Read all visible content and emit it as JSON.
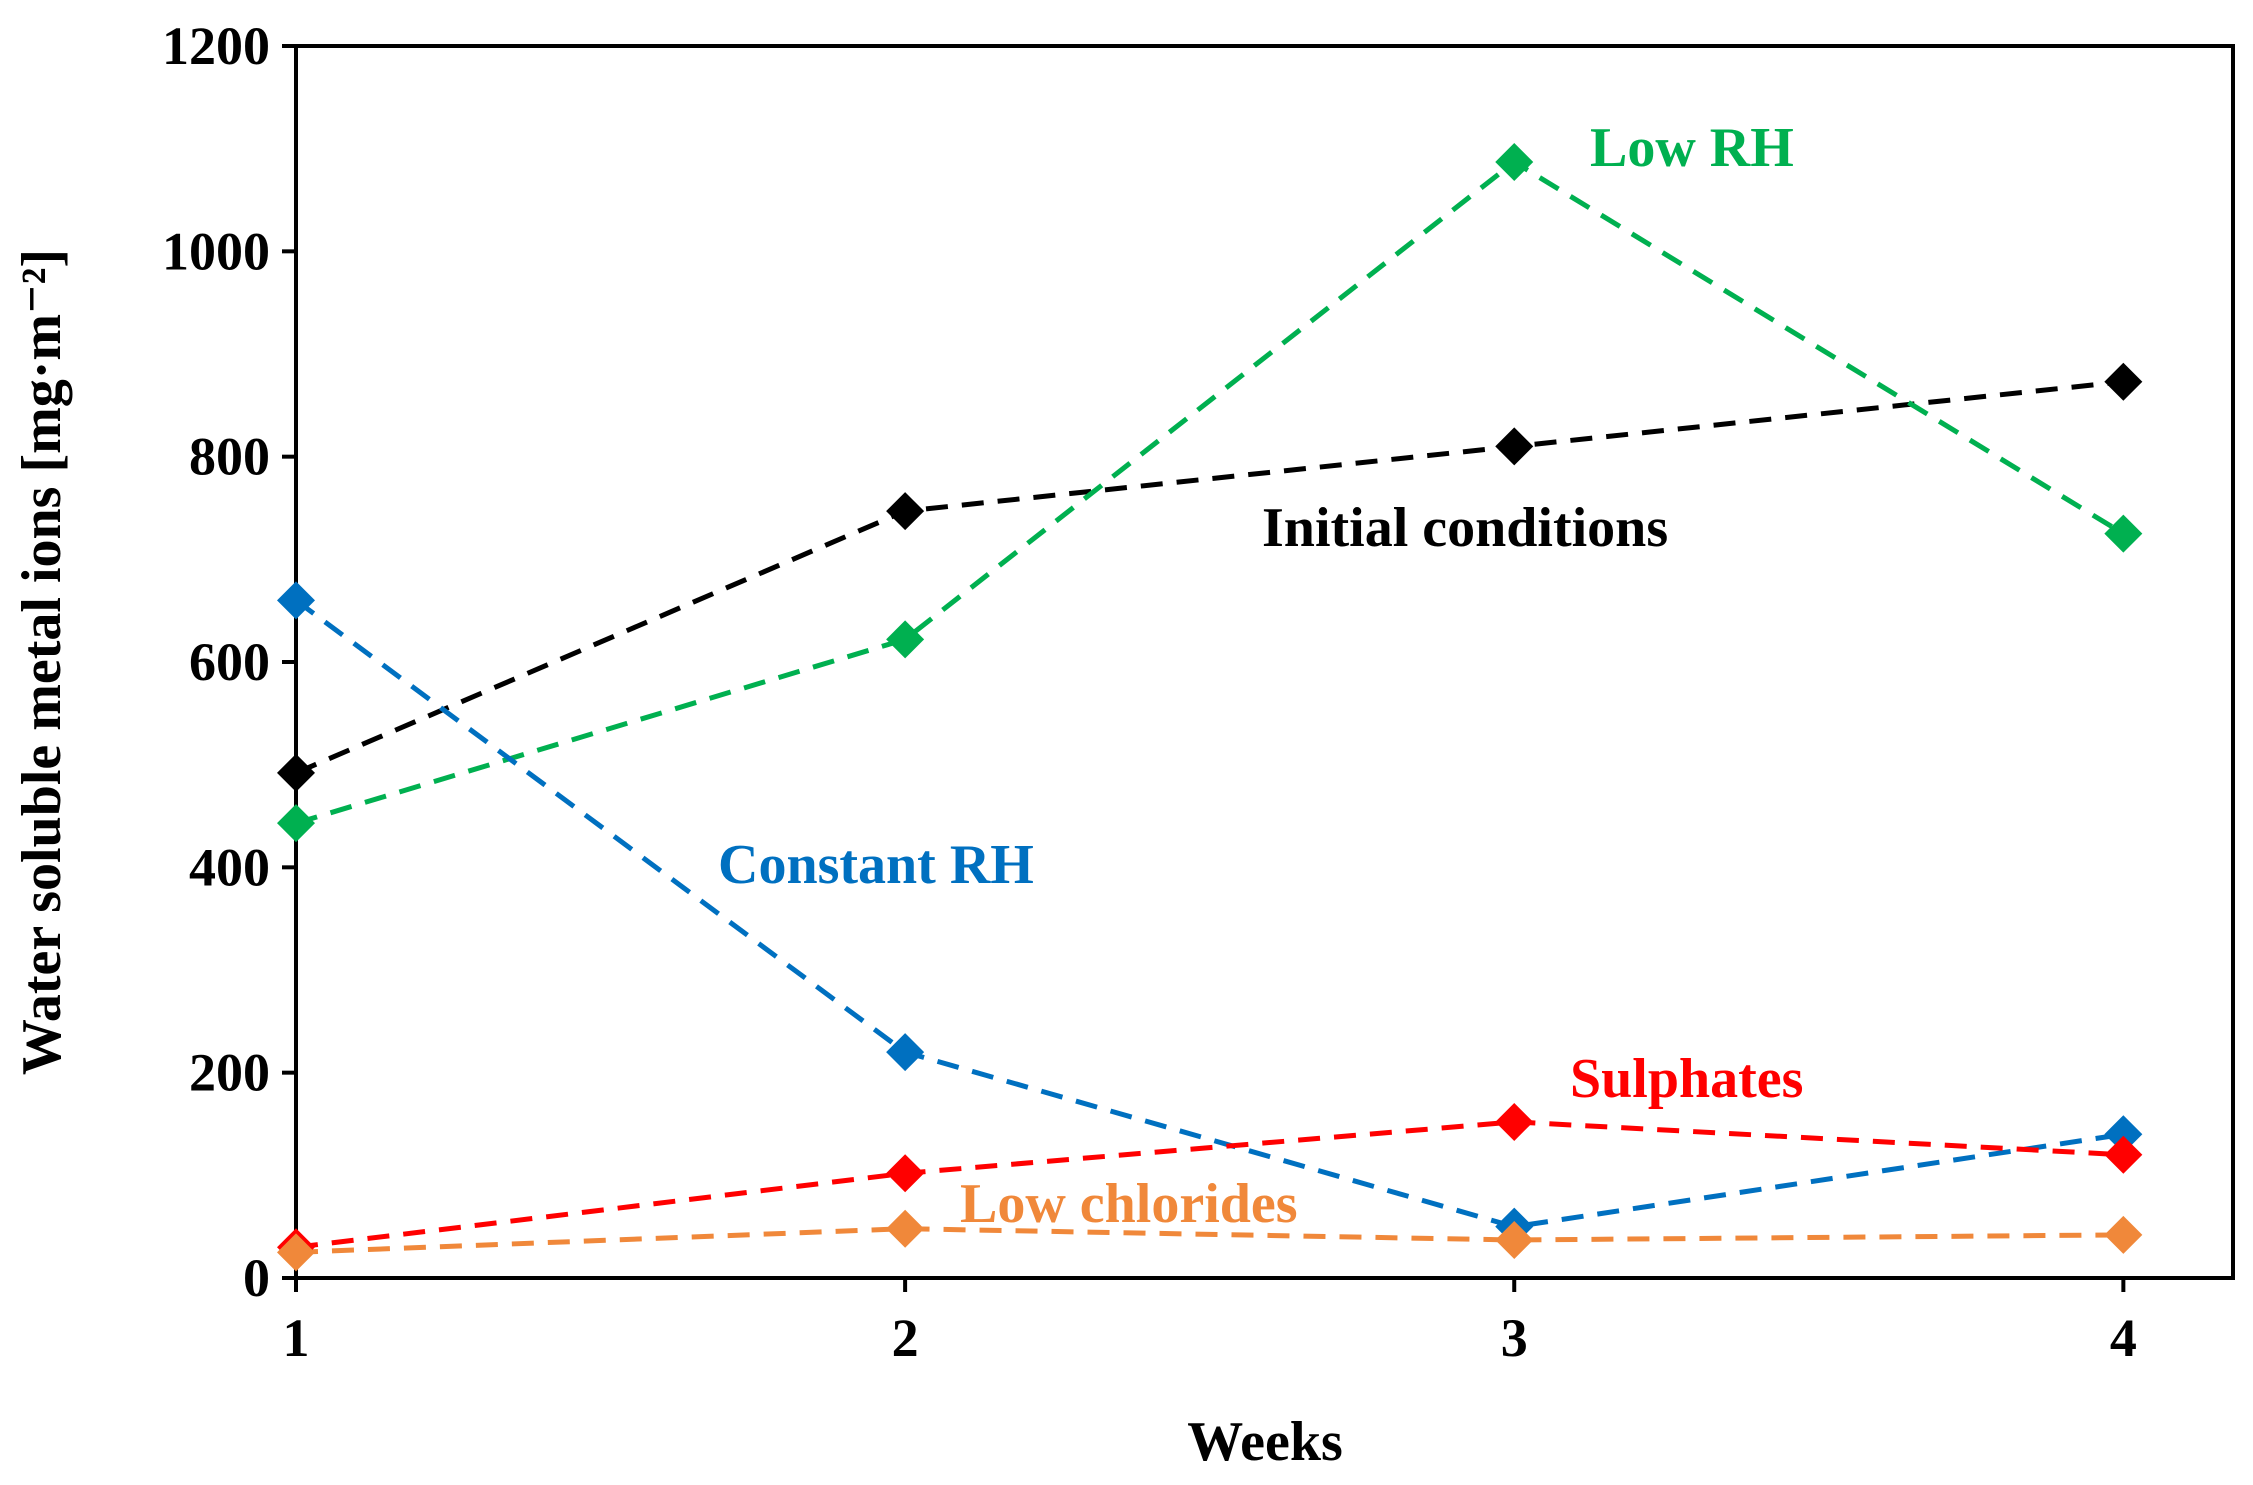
{
  "chart_data": {
    "type": "line",
    "title": "",
    "xlabel": "Weeks",
    "ylabel": "Water soluble metal ions [mg·m⁻²]",
    "x": [
      1,
      2,
      3,
      4
    ],
    "x_tick_labels": [
      "1",
      "2",
      "3",
      "4"
    ],
    "xlim": [
      1,
      4.18
    ],
    "ylim": [
      0,
      1200
    ],
    "y_ticks": [
      0,
      200,
      400,
      600,
      800,
      1000,
      1200
    ],
    "y_tick_labels": [
      "0",
      "200",
      "400",
      "600",
      "800",
      "1000",
      "1200"
    ],
    "grid": false,
    "legend": "inline labels",
    "series": [
      {
        "name": "Initial conditions",
        "color": "#000000",
        "values": [
          492,
          747,
          810,
          873
        ]
      },
      {
        "name": "Low RH",
        "color": "#00b050",
        "values": [
          443,
          622,
          1087,
          725
        ]
      },
      {
        "name": "Constant RH",
        "color": "#0070c0",
        "values": [
          660,
          220,
          50,
          140
        ]
      },
      {
        "name": "Sulphates",
        "color": "#ff0000",
        "values": [
          30,
          102,
          152,
          120
        ]
      },
      {
        "name": "Low chlorides",
        "color": "#f0883a",
        "values": [
          25,
          48,
          37,
          42
        ]
      }
    ]
  }
}
